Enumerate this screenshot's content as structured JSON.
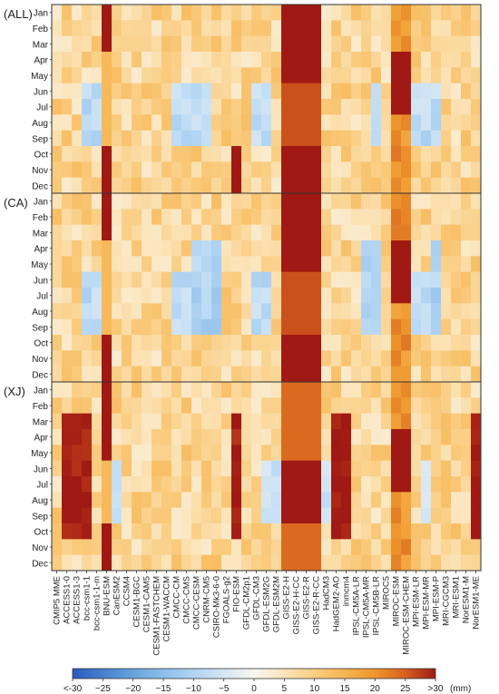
{
  "chart_data": {
    "type": "heatmap",
    "panels": [
      {
        "label": "(ALL)"
      },
      {
        "label": "(CA)"
      },
      {
        "label": "(XJ)"
      }
    ],
    "months": [
      "Jan",
      "Feb",
      "Mar",
      "Apr",
      "May",
      "Jun",
      "Jul",
      "Aug",
      "Sep",
      "Oct",
      "Nov",
      "Dec"
    ],
    "models": [
      "CMIP5 MME",
      "ACCESS1-0",
      "ACCESS1-3",
      "bcc-csm1-1",
      "bcc-csm1-1-m",
      "BNU-ESM",
      "CanESM2",
      "CCSM4",
      "CESM1-BGC",
      "CESM1-CAM5",
      "CESM1-FASTCHEM",
      "CESM1-WACCM",
      "CMCC-CM",
      "CMCC-CMS",
      "CMCC-CESM",
      "CNRM-CM5",
      "CSIRO-Mk3-6-0",
      "FGOALS-g2",
      "FIO-ESM",
      "GFDL-CM2p1",
      "GFDL-CM3",
      "GFDL-ESM2G",
      "GFDL-ESM2M",
      "GISS-E2-H",
      "GISS-E2-H-CC",
      "GISS-E2-R",
      "GISS-E2-R-CC",
      "HadCM3",
      "HadGEM2-AO",
      "inmcm4",
      "IPSL-CM5A-LR",
      "IPSL-CM5A-MR",
      "IPSL-CM5B-LR",
      "MIROC5",
      "MIROC-ESM",
      "MIROC-ESM-CHEM",
      "MPI-ESM-LR",
      "MPI-ESM-MR",
      "MPI-ESM-P",
      "MRI-CGCM3",
      "MRI-ESM1",
      "NorESM1-M",
      "NorESM1-ME"
    ],
    "colorbar": {
      "ticks": [
        "<-30",
        "−25",
        "−20",
        "−15",
        "−10",
        "−5",
        "0",
        "5",
        "10",
        "15",
        "20",
        "25",
        ">30"
      ],
      "unit": "(mm)",
      "range": [
        -30,
        30
      ]
    }
  }
}
